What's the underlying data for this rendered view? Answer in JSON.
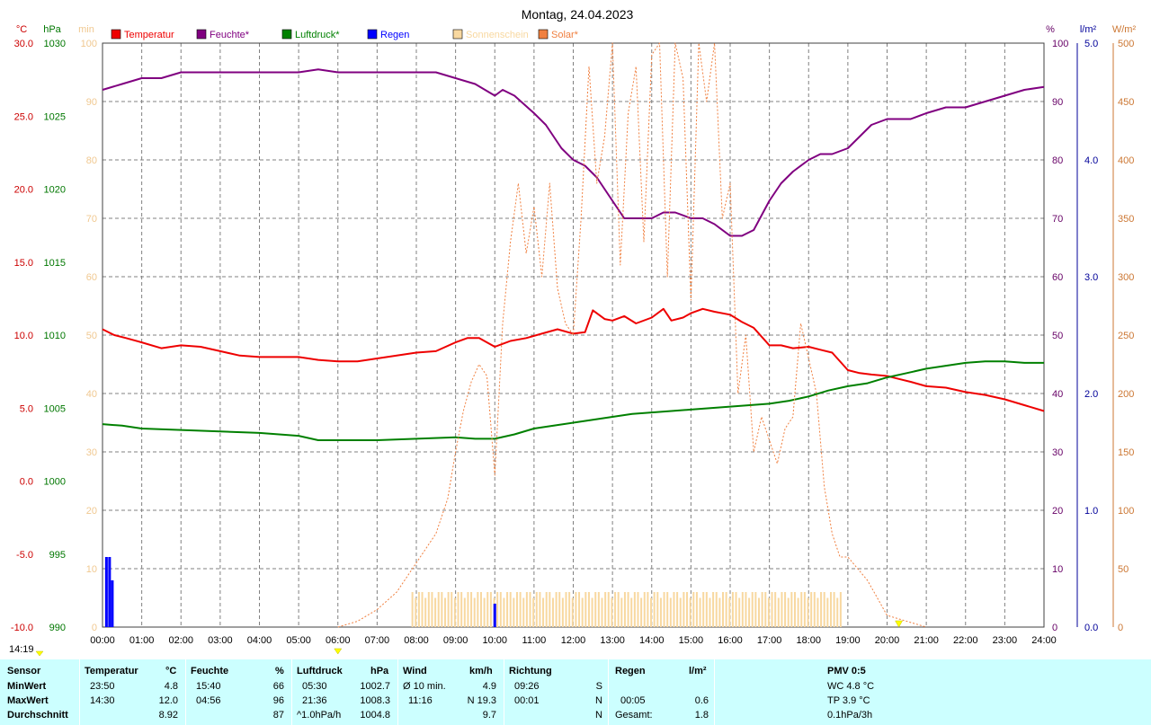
{
  "chart_data": {
    "type": "line",
    "title": "Montag, 24.04.2023",
    "x_ticks": [
      "00:00",
      "01:00",
      "02:00",
      "03:00",
      "04:00",
      "05:00",
      "06:00",
      "07:00",
      "08:00",
      "09:00",
      "10:00",
      "11:00",
      "12:00",
      "13:00",
      "14:00",
      "15:00",
      "16:00",
      "17:00",
      "18:00",
      "19:00",
      "20:00",
      "21:00",
      "22:00",
      "23:00",
      "24:00"
    ],
    "axes": {
      "temp": {
        "unit": "°C",
        "range": [
          -10,
          30
        ],
        "ticks": [
          "30.0",
          "25.0",
          "20.0",
          "15.0",
          "10.0",
          "5.0",
          "0.0",
          "-5.0",
          "-10.0"
        ],
        "color": "#cc0000"
      },
      "pressure": {
        "unit": "hPa",
        "range": [
          990,
          1030
        ],
        "ticks": [
          "1030",
          "1025",
          "1020",
          "1015",
          "1010",
          "1005",
          "1000",
          "995",
          "990"
        ],
        "color": "#007700"
      },
      "sunshine": {
        "unit": "min",
        "range": [
          0,
          100
        ],
        "ticks": [
          "100",
          "90",
          "80",
          "70",
          "60",
          "50",
          "40",
          "30",
          "20",
          "10",
          "0"
        ],
        "color": "#f0c890"
      },
      "humidity": {
        "unit": "%",
        "range": [
          0,
          100
        ],
        "ticks": [
          "100",
          "90",
          "80",
          "70",
          "60",
          "50",
          "40",
          "30",
          "20",
          "10",
          "0"
        ],
        "color": "#660066"
      },
      "rain": {
        "unit": "l/m²",
        "range": [
          0,
          5
        ],
        "ticks": [
          "5.0",
          "4.0",
          "3.0",
          "2.0",
          "1.0",
          "0.0"
        ],
        "color": "#000099"
      },
      "solar": {
        "unit": "W/m²",
        "range": [
          0,
          500
        ],
        "ticks": [
          "500",
          "450",
          "400",
          "350",
          "300",
          "250",
          "200",
          "150",
          "100",
          "50",
          "0"
        ],
        "color": "#cc7733"
      }
    },
    "legend": [
      {
        "name": "Temperatur",
        "color": "#ee0000"
      },
      {
        "name": "Feuchte*",
        "color": "#800080"
      },
      {
        "name": "Luftdruck*",
        "color": "#008000"
      },
      {
        "name": "Regen",
        "color": "#0000ff"
      },
      {
        "name": "Sonnenschein",
        "color": "#f8d8a0"
      },
      {
        "name": "Solar*",
        "color": "#f08040"
      }
    ],
    "series": [
      {
        "name": "Temperatur",
        "axis": "temp",
        "color": "#ee0000",
        "x": [
          0,
          0.3,
          0.6,
          1,
          1.5,
          2,
          2.5,
          3,
          3.5,
          4,
          4.5,
          5,
          5.5,
          6,
          6.5,
          7,
          7.5,
          8,
          8.5,
          9,
          9.3,
          9.6,
          10,
          10.4,
          10.8,
          11.2,
          11.6,
          12,
          12.3,
          12.5,
          12.8,
          13,
          13.3,
          13.6,
          14,
          14.3,
          14.5,
          14.8,
          15,
          15.3,
          15.6,
          16,
          16.3,
          16.6,
          17,
          17.3,
          17.6,
          18,
          18.3,
          18.6,
          19,
          19.3,
          19.6,
          20,
          20.3,
          20.6,
          21,
          21.5,
          22,
          22.5,
          23,
          23.5,
          24
        ],
        "y": [
          10.4,
          10,
          9.8,
          9.5,
          9.1,
          9.3,
          9.2,
          8.9,
          8.6,
          8.5,
          8.5,
          8.5,
          8.3,
          8.2,
          8.2,
          8.4,
          8.6,
          8.8,
          8.9,
          9.5,
          9.8,
          9.8,
          9.2,
          9.6,
          9.8,
          10.1,
          10.4,
          10.1,
          10.2,
          11.7,
          11.1,
          11.0,
          11.3,
          10.8,
          11.2,
          11.8,
          11.0,
          11.2,
          11.5,
          11.8,
          11.6,
          11.4,
          10.9,
          10.5,
          9.3,
          9.3,
          9.1,
          9.2,
          9.0,
          8.8,
          7.6,
          7.4,
          7.3,
          7.2,
          7.0,
          6.8,
          6.5,
          6.4,
          6.1,
          5.9,
          5.6,
          5.2,
          4.8
        ]
      },
      {
        "name": "Feuchte*",
        "axis": "humidity",
        "color": "#800080",
        "x": [
          0,
          0.5,
          1,
          1.5,
          2,
          3,
          4,
          5,
          5.5,
          6,
          7,
          8,
          8.5,
          9,
          9.5,
          10,
          10.2,
          10.5,
          11,
          11.3,
          11.7,
          12,
          12.3,
          12.6,
          13,
          13.3,
          13.6,
          14,
          14.3,
          14.6,
          15,
          15.3,
          15.6,
          16,
          16.3,
          16.6,
          17,
          17.3,
          17.6,
          18,
          18.3,
          18.6,
          19,
          19.3,
          19.6,
          20,
          20.3,
          20.6,
          21,
          21.5,
          22,
          22.5,
          23,
          23.5,
          24
        ],
        "y": [
          92,
          93,
          94,
          94,
          95,
          95,
          95,
          95,
          95.5,
          95,
          95,
          95,
          95,
          94,
          93,
          91,
          92,
          91,
          88,
          86,
          82,
          80,
          79,
          77,
          73,
          70,
          70,
          70,
          71,
          71,
          70,
          70,
          69,
          67,
          67,
          68,
          73,
          76,
          78,
          80,
          81,
          81,
          82,
          84,
          86,
          87,
          87,
          87,
          88,
          89,
          89,
          90,
          91,
          92,
          92.5
        ]
      },
      {
        "name": "Luftdruck*",
        "axis": "pressure",
        "color": "#008000",
        "x": [
          0,
          0.5,
          1,
          2,
          3,
          4,
          5,
          5.5,
          6,
          7,
          8,
          9,
          9.5,
          10,
          10.5,
          11,
          11.5,
          12,
          12.5,
          13,
          13.5,
          14,
          14.5,
          15,
          15.5,
          16,
          16.5,
          17,
          17.5,
          18,
          18.5,
          19,
          19.5,
          20,
          20.5,
          21,
          21.5,
          22,
          22.5,
          23,
          23.5,
          24
        ],
        "y": [
          1003.9,
          1003.8,
          1003.6,
          1003.5,
          1003.4,
          1003.3,
          1003.1,
          1002.8,
          1002.8,
          1002.8,
          1002.9,
          1003.0,
          1002.9,
          1002.9,
          1003.2,
          1003.6,
          1003.8,
          1004.0,
          1004.2,
          1004.4,
          1004.6,
          1004.7,
          1004.8,
          1004.9,
          1005.0,
          1005.1,
          1005.2,
          1005.3,
          1005.5,
          1005.8,
          1006.2,
          1006.5,
          1006.7,
          1007.1,
          1007.4,
          1007.7,
          1007.9,
          1008.1,
          1008.2,
          1008.2,
          1008.1,
          1008.1
        ]
      },
      {
        "name": "Solar*",
        "axis": "solar",
        "color": "#f08040",
        "dashed": true,
        "x": [
          6,
          6.5,
          7,
          7.5,
          8,
          8.5,
          8.8,
          9,
          9.2,
          9.4,
          9.6,
          9.8,
          10,
          10.2,
          10.4,
          10.6,
          10.8,
          11,
          11.2,
          11.4,
          11.6,
          11.8,
          12,
          12.2,
          12.4,
          12.6,
          12.8,
          13,
          13.2,
          13.4,
          13.6,
          13.8,
          14,
          14.2,
          14.4,
          14.6,
          14.8,
          15,
          15.2,
          15.4,
          15.6,
          15.8,
          16,
          16.2,
          16.4,
          16.6,
          16.8,
          17,
          17.2,
          17.4,
          17.6,
          17.8,
          18,
          18.2,
          18.4,
          18.6,
          18.8,
          19,
          19.5,
          20,
          20.5,
          21
        ],
        "y": [
          0,
          5,
          15,
          30,
          55,
          80,
          110,
          150,
          185,
          210,
          225,
          215,
          130,
          260,
          330,
          380,
          320,
          360,
          300,
          380,
          290,
          260,
          250,
          350,
          480,
          380,
          420,
          500,
          310,
          440,
          480,
          330,
          490,
          500,
          300,
          500,
          470,
          280,
          500,
          450,
          500,
          350,
          380,
          200,
          250,
          150,
          180,
          160,
          140,
          170,
          180,
          260,
          230,
          200,
          120,
          80,
          60,
          60,
          40,
          10,
          5,
          0
        ]
      }
    ],
    "rain_bars": [
      {
        "x": 0.1,
        "y": 0.6
      },
      {
        "x": 0.18,
        "y": 0.6
      },
      {
        "x": 0.25,
        "y": 0.4
      },
      {
        "x": 10.0,
        "y": 0.2
      }
    ],
    "sunshine_bars": {
      "start": 7.9,
      "end": 18.9,
      "value": 6
    },
    "time_label": "14:19"
  },
  "stats": {
    "headers": {
      "sensor": "Sensor",
      "temperature": "Temperatur",
      "temp_unit": "°C",
      "humidity": "Feuchte",
      "hum_unit": "%",
      "pressure": "Luftdruck",
      "press_unit": "hPa",
      "wind": "Wind",
      "wind_unit": "km/h",
      "direction": "Richtung",
      "rain": "Regen",
      "rain_unit": "l/m²",
      "pmv": "PMV 0:5"
    },
    "rows": [
      "MinWert",
      "MaxWert",
      "Durchschnitt"
    ],
    "temp": [
      {
        "time": "23:50",
        "val": "4.8"
      },
      {
        "time": "14:30",
        "val": "12.0"
      },
      {
        "time": "",
        "val": "8.92"
      }
    ],
    "hum": [
      {
        "time": "15:40",
        "val": "66"
      },
      {
        "time": "04:56",
        "val": "96"
      },
      {
        "time": "",
        "val": "87"
      }
    ],
    "press": [
      {
        "time": "05:30",
        "val": "1002.7"
      },
      {
        "time": "21:36",
        "val": "1008.3"
      },
      {
        "time": "^1.0hPa/h",
        "val": "1004.8"
      }
    ],
    "wind": [
      {
        "time": "Ø 10 min.",
        "val": "4.9"
      },
      {
        "time": "11:16",
        "val": "N 19.3"
      },
      {
        "time": "",
        "val": "9.7"
      }
    ],
    "dir": [
      {
        "time": "09:26",
        "val": "S"
      },
      {
        "time": "00:01",
        "val": "N"
      },
      {
        "time": "",
        "val": "N"
      }
    ],
    "rain": [
      {
        "time": "",
        "val": ""
      },
      {
        "time": "00:05",
        "val": "0.6"
      },
      {
        "time": "Gesamt:",
        "val": "1.8"
      }
    ],
    "pmv": [
      "WC 4.8 °C",
      "TP 3.9 °C",
      "0.1hPa/3h"
    ]
  }
}
